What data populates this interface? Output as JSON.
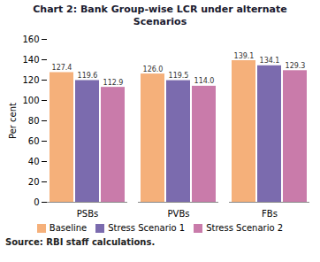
{
  "chart_data": {
    "type": "bar",
    "title": "Chart 2: Bank Group-wise LCR under alternate Scenarios",
    "categories": [
      "PSBs",
      "PVBs",
      "FBs"
    ],
    "series": [
      {
        "name": "Baseline",
        "values": [
          127.4,
          126.0,
          139.1
        ],
        "value_labels": [
          "127.4",
          "126.0",
          "139.1"
        ],
        "color": "#F5B07A"
      },
      {
        "name": "Stress Scenario 1",
        "values": [
          119.6,
          119.5,
          134.1
        ],
        "value_labels": [
          "119.6",
          "119.5",
          "134.1"
        ],
        "color": "#7B6BAE"
      },
      {
        "name": "Stress Scenario 2",
        "values": [
          112.9,
          114.0,
          129.3
        ],
        "value_labels": [
          "112.9",
          "114.0",
          "129.3"
        ],
        "color": "#C97BAA"
      }
    ],
    "ylabel": "Per cent",
    "ylim": [
      0,
      160
    ],
    "yticks": [
      0,
      20,
      40,
      60,
      80,
      100,
      120,
      140,
      160
    ],
    "source": "Source: RBI staff calculations.",
    "data_labels": true,
    "grid": false,
    "legend": "bottom"
  }
}
